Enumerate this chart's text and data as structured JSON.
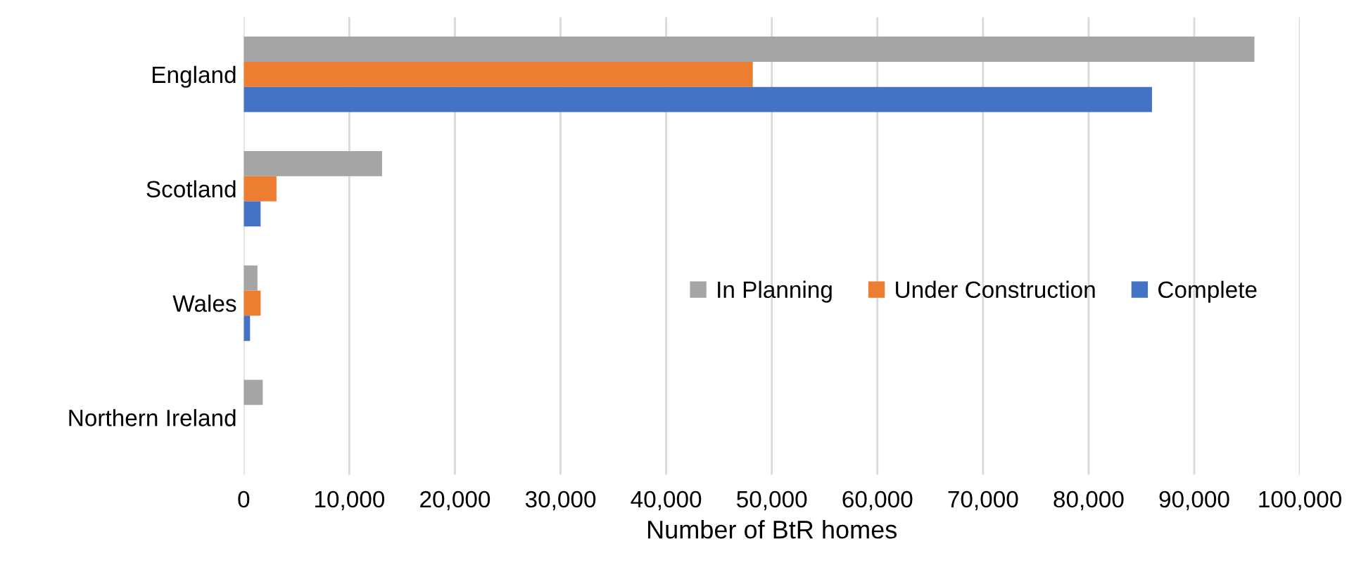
{
  "chart_data": {
    "type": "bar",
    "orientation": "horizontal",
    "xlabel": "Number of BtR homes",
    "categories": [
      "England",
      "Scotland",
      "Wales",
      "Northern Ireland"
    ],
    "series": [
      {
        "name": "In Planning",
        "color": "#a5a5a5",
        "values": [
          95700,
          13100,
          1300,
          1800
        ]
      },
      {
        "name": "Under Construction",
        "color": "#ed7d31",
        "values": [
          48200,
          3100,
          1600,
          null
        ]
      },
      {
        "name": "Complete",
        "color": "#4472c4",
        "values": [
          86000,
          1600,
          600,
          null
        ]
      }
    ],
    "xlim": [
      0,
      100000
    ],
    "xticks": [
      0,
      {
        "value": 10000,
        "label": "10,000"
      },
      {
        "value": 20000,
        "label": "20,000"
      },
      {
        "value": 30000,
        "label": "30,000"
      },
      {
        "value": 40000,
        "label": "40,000"
      },
      {
        "value": 50000,
        "label": "50,000"
      },
      {
        "value": 60000,
        "label": "60,000"
      },
      {
        "value": 70000,
        "label": "70,000"
      },
      {
        "value": 80000,
        "label": "80,000"
      },
      {
        "value": 90000,
        "label": "90,000"
      },
      {
        "value": 100000,
        "label": "100,000"
      }
    ],
    "grid": "x",
    "legend": "center right"
  }
}
